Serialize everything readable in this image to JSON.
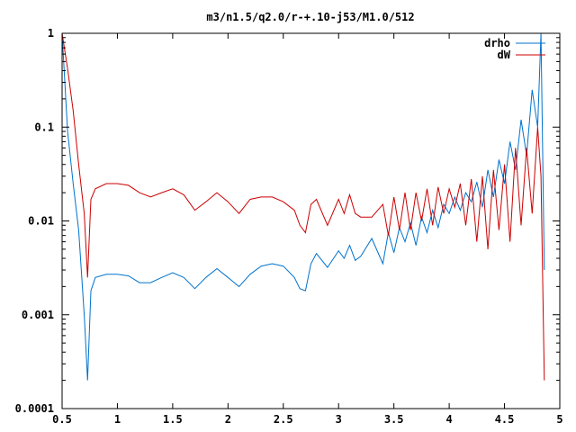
{
  "chart_data": {
    "type": "line",
    "title": "m3/n1.5/q2.0/r-+.10-j53/M1.0/512",
    "xlabel": "",
    "ylabel": "",
    "xlim": [
      0.5,
      5
    ],
    "ylim": [
      0.0001,
      1
    ],
    "yscale": "log",
    "grid": false,
    "legend_position": "top-right",
    "x_ticks": [
      "0.5",
      "1",
      "1.5",
      "2",
      "2.5",
      "3",
      "3.5",
      "4",
      "4.5",
      "5"
    ],
    "y_ticks": [
      "0.0001",
      "0.001",
      "0.01",
      "0.1",
      "1"
    ],
    "series": [
      {
        "name": "drho",
        "color": "#0072cc",
        "x": [
          0.5,
          0.55,
          0.6,
          0.65,
          0.7,
          0.73,
          0.76,
          0.8,
          0.9,
          1.0,
          1.1,
          1.2,
          1.3,
          1.4,
          1.5,
          1.6,
          1.7,
          1.8,
          1.9,
          2.0,
          2.1,
          2.2,
          2.3,
          2.4,
          2.5,
          2.6,
          2.65,
          2.7,
          2.75,
          2.8,
          2.9,
          3.0,
          3.05,
          3.1,
          3.15,
          3.2,
          3.3,
          3.4,
          3.45,
          3.5,
          3.55,
          3.6,
          3.65,
          3.7,
          3.75,
          3.8,
          3.85,
          3.9,
          3.95,
          4.0,
          4.05,
          4.1,
          4.15,
          4.2,
          4.25,
          4.3,
          4.35,
          4.4,
          4.45,
          4.5,
          4.55,
          4.6,
          4.65,
          4.7,
          4.75,
          4.8,
          4.83,
          4.86
        ],
        "y": [
          1.0,
          0.09,
          0.025,
          0.008,
          0.001,
          0.0002,
          0.0018,
          0.0025,
          0.0027,
          0.0027,
          0.0026,
          0.0022,
          0.0022,
          0.0025,
          0.0028,
          0.0025,
          0.0019,
          0.0025,
          0.0031,
          0.0025,
          0.002,
          0.0027,
          0.0033,
          0.0035,
          0.0033,
          0.0025,
          0.0019,
          0.0018,
          0.0035,
          0.0045,
          0.0032,
          0.0048,
          0.004,
          0.0055,
          0.0038,
          0.0042,
          0.0065,
          0.0035,
          0.0075,
          0.0046,
          0.0085,
          0.006,
          0.0095,
          0.0055,
          0.011,
          0.0075,
          0.013,
          0.0085,
          0.015,
          0.012,
          0.018,
          0.013,
          0.02,
          0.016,
          0.026,
          0.014,
          0.035,
          0.018,
          0.045,
          0.025,
          0.07,
          0.035,
          0.12,
          0.05,
          0.25,
          0.1,
          1.0,
          0.003
        ]
      },
      {
        "name": "dW",
        "color": "#cc0000",
        "x": [
          0.5,
          0.55,
          0.6,
          0.65,
          0.7,
          0.73,
          0.76,
          0.8,
          0.9,
          1.0,
          1.1,
          1.2,
          1.3,
          1.4,
          1.5,
          1.6,
          1.7,
          1.8,
          1.9,
          2.0,
          2.1,
          2.2,
          2.3,
          2.4,
          2.5,
          2.6,
          2.65,
          2.7,
          2.75,
          2.8,
          2.9,
          3.0,
          3.05,
          3.1,
          3.15,
          3.2,
          3.3,
          3.4,
          3.45,
          3.5,
          3.55,
          3.6,
          3.65,
          3.7,
          3.75,
          3.8,
          3.85,
          3.9,
          3.95,
          4.0,
          4.05,
          4.1,
          4.15,
          4.2,
          4.25,
          4.3,
          4.35,
          4.4,
          4.45,
          4.5,
          4.55,
          4.6,
          4.65,
          4.7,
          4.75,
          4.8,
          4.83,
          4.86
        ],
        "y": [
          1.0,
          0.42,
          0.15,
          0.04,
          0.012,
          0.0025,
          0.017,
          0.022,
          0.025,
          0.025,
          0.024,
          0.02,
          0.018,
          0.02,
          0.022,
          0.019,
          0.013,
          0.016,
          0.02,
          0.016,
          0.012,
          0.017,
          0.018,
          0.018,
          0.016,
          0.013,
          0.009,
          0.0075,
          0.015,
          0.017,
          0.009,
          0.017,
          0.012,
          0.019,
          0.012,
          0.011,
          0.011,
          0.015,
          0.007,
          0.018,
          0.008,
          0.02,
          0.008,
          0.02,
          0.01,
          0.022,
          0.009,
          0.023,
          0.012,
          0.022,
          0.014,
          0.025,
          0.009,
          0.028,
          0.006,
          0.03,
          0.005,
          0.035,
          0.008,
          0.04,
          0.006,
          0.06,
          0.009,
          0.06,
          0.012,
          0.1,
          0.03,
          0.0002
        ]
      }
    ]
  }
}
